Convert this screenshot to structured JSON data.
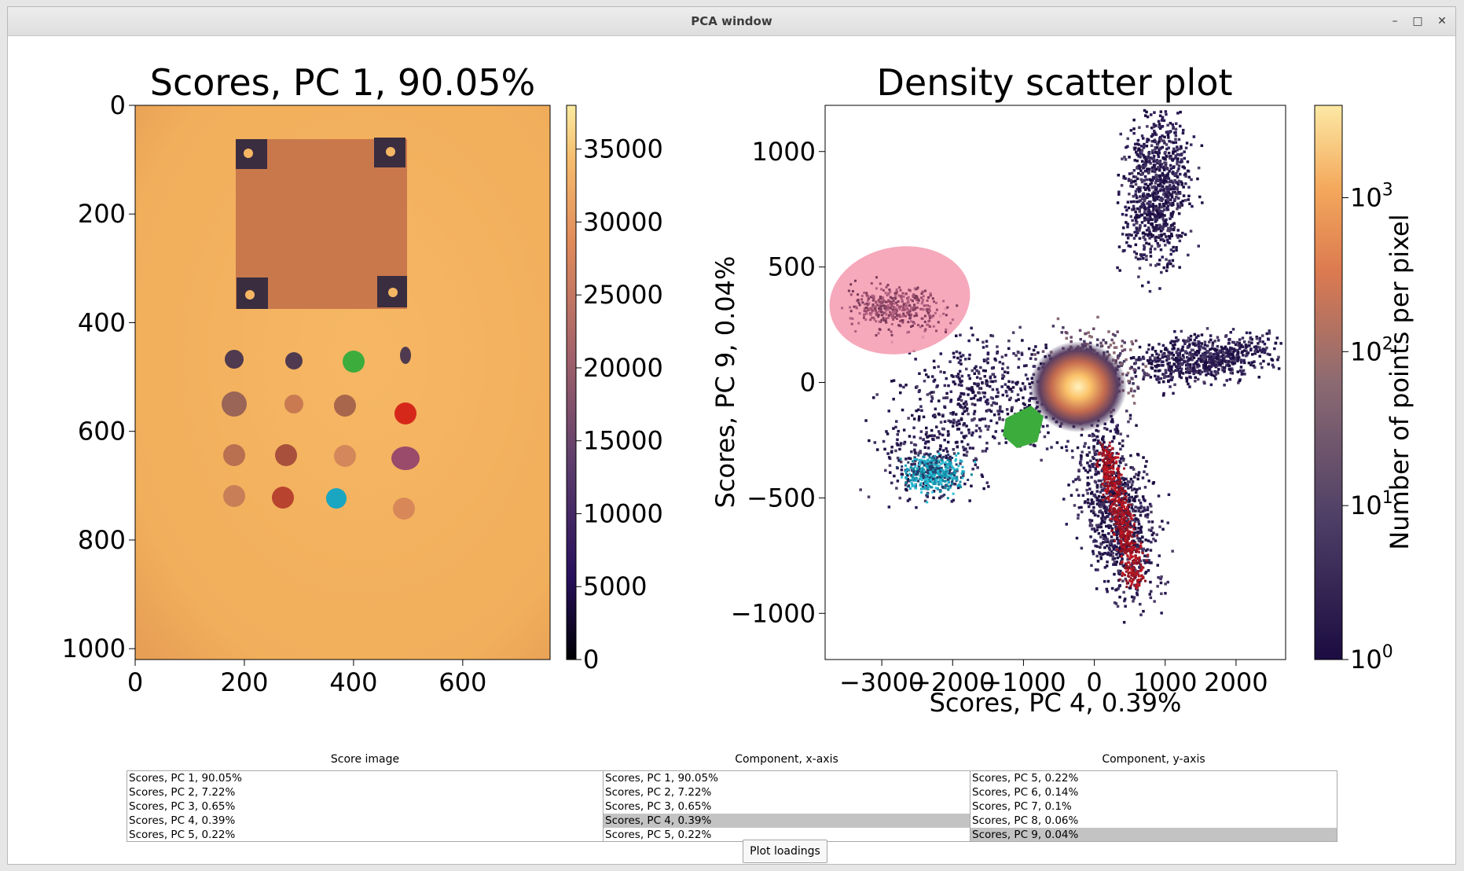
{
  "window": {
    "title": "PCA window",
    "minimize_glyph": "–",
    "maximize_glyph": "□",
    "close_glyph": "✕"
  },
  "score_plot": {
    "title": "Scores, PC 1, 90.05%",
    "x_ticks": [
      "0",
      "200",
      "400",
      "600"
    ],
    "y_ticks": [
      "0",
      "200",
      "400",
      "600",
      "800",
      "1000"
    ],
    "colorbar_ticks": [
      "0",
      "5000",
      "10000",
      "15000",
      "20000",
      "25000",
      "30000",
      "35000"
    ],
    "colormap": "inferno-like (dark purple to pale yellow)",
    "background_color": "#f2b05e"
  },
  "density_plot": {
    "title": "Density scatter plot",
    "xlabel": "Scores, PC 4, 0.39%",
    "ylabel": "Scores, PC 9, 0.04%",
    "x_ticks": [
      "−3000",
      "−2000",
      "−1000",
      "0",
      "1000",
      "2000"
    ],
    "y_ticks": [
      "1000",
      "500",
      "0",
      "−500",
      "−1000"
    ],
    "colorbar_label": "Number of points per pixel",
    "colorbar_ticks": [
      {
        "base": "10",
        "exp": "0"
      },
      {
        "base": "10",
        "exp": "1"
      },
      {
        "base": "10",
        "exp": "2"
      },
      {
        "base": "10",
        "exp": "3"
      }
    ],
    "colorbar_scale": "log"
  },
  "colors": {
    "pink": "#f5a0b4",
    "green": "#3cac3c",
    "red": "#c0141e",
    "cyan": "#1aa6c0",
    "dark": "#231447",
    "orange": "#f2b05e"
  },
  "panels": {
    "score_image": {
      "label": "Score image",
      "items": [
        "Scores, PC 1, 90.05%",
        "Scores, PC 2, 7.22%",
        "Scores, PC 3, 0.65%",
        "Scores, PC 4, 0.39%",
        "Scores, PC 5, 0.22%"
      ],
      "selected": -1
    },
    "x_axis": {
      "label": "Component, x-axis",
      "items": [
        "Scores, PC 1, 90.05%",
        "Scores, PC 2, 7.22%",
        "Scores, PC 3, 0.65%",
        "Scores, PC 4, 0.39%",
        "Scores, PC 5, 0.22%"
      ],
      "selected": 3
    },
    "y_axis": {
      "label": "Component, y-axis",
      "items": [
        "Scores, PC 5, 0.22%",
        "Scores, PC 6, 0.14%",
        "Scores, PC 7, 0.1%",
        "Scores, PC 8, 0.06%",
        "Scores, PC 9, 0.04%"
      ],
      "selected": 4
    }
  },
  "buttons": {
    "plot_loadings": "Plot loadings"
  }
}
